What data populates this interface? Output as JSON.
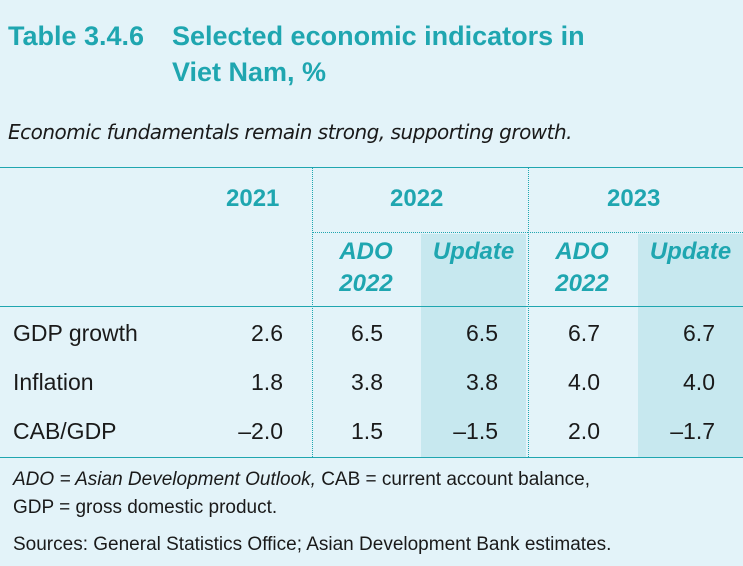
{
  "title": {
    "number": "Table 3.4.6",
    "text": "Selected economic indicators in Viet Nam, %"
  },
  "subtitle": "Economic fundamentals remain strong, supporting growth.",
  "columns": {
    "y2021": "2021",
    "y2022": "2022",
    "y2023": "2023",
    "ado2022": "ADO 2022",
    "update2022": "Update",
    "ado2023": "ADO 2022",
    "update2023": "Update"
  },
  "rows": [
    {
      "label": "GDP growth",
      "v2021": "2.6",
      "ado2022": "6.5",
      "upd2022": "6.5",
      "ado2023": "6.7",
      "upd2023": "6.7"
    },
    {
      "label": "Inflation",
      "v2021": "1.8",
      "ado2022": "3.8",
      "upd2022": "3.8",
      "ado2023": "4.0",
      "upd2023": "4.0"
    },
    {
      "label": "CAB/GDP",
      "v2021": "–2.0",
      "ado2022": "1.5",
      "upd2022": "–1.5",
      "ado2023": "2.0",
      "upd2023": "–1.7"
    }
  ],
  "notes": {
    "abbr_ado": "ADO = Asian Development Outlook,",
    "abbr_rest": " CAB = current account balance,",
    "abbr_line2": "GDP = gross domestic product.",
    "sources": "Sources: General Statistics Office; Asian Development Bank estimates."
  },
  "colors": {
    "accent": "#1fa6b0",
    "background": "#e3f3f9",
    "shade": "#c7e8ef"
  }
}
